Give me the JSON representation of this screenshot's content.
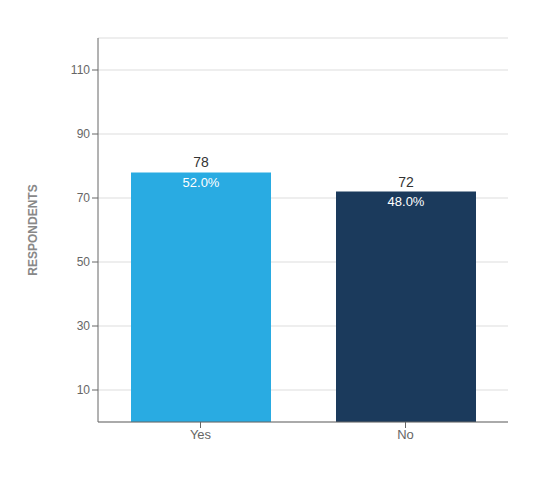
{
  "chart_data": {
    "type": "bar",
    "categories": [
      "Yes",
      "No"
    ],
    "values": [
      78,
      72
    ],
    "percentages": [
      "52.0%",
      "48.0%"
    ],
    "colors": [
      "#29ABE2",
      "#1B3A5C"
    ],
    "ylabel": "RESPONDENTS",
    "ylim": [
      0,
      120
    ],
    "yticks": [
      10,
      30,
      50,
      70,
      90,
      110
    ],
    "grid": true,
    "data_labels": true
  }
}
